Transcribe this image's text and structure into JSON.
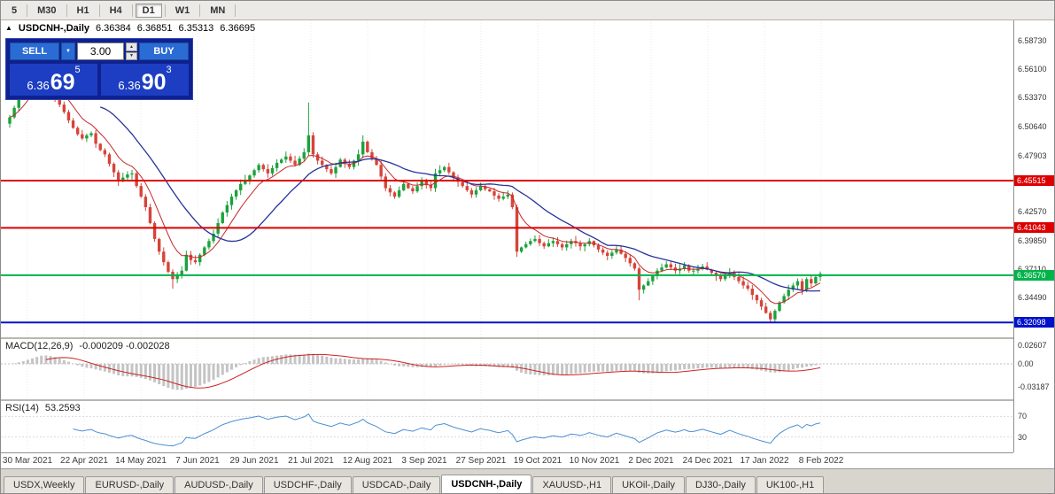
{
  "toolbar": {
    "timeframes": [
      "5",
      "M30",
      "H1",
      "H4",
      "D1",
      "W1",
      "MN"
    ],
    "active": "D1"
  },
  "chart": {
    "title": {
      "symbol": "USDCNH-,Daily",
      "open": "6.36384",
      "high": "6.36851",
      "low": "6.35313",
      "close": "6.36695"
    },
    "trade": {
      "sell": "SELL",
      "buy": "BUY",
      "volume": "3.00",
      "bid": {
        "prefix": "6.36",
        "main": "69",
        "pip": "5"
      },
      "ask": {
        "prefix": "6.36",
        "main": "90",
        "pip": "3"
      }
    },
    "hlines": [
      {
        "price": 6.45515,
        "label": "6.45515",
        "color": "#dd0000"
      },
      {
        "price": 6.41043,
        "label": "6.41043",
        "color": "#dd0000"
      },
      {
        "price": 6.3657,
        "label": "6.36570",
        "color": "#00b44a"
      },
      {
        "price": 6.32098,
        "label": "6.32098",
        "color": "#0012cc"
      }
    ],
    "axis_labels": [
      {
        "text": "6.58730",
        "price": 6.5873
      },
      {
        "text": "6.56100",
        "price": 6.561
      },
      {
        "text": "6.53370",
        "price": 6.5337
      },
      {
        "text": "6.50640",
        "price": 6.5064
      },
      {
        "text": "6.47903",
        "price": 6.479
      },
      {
        "text": "6.42570",
        "price": 6.4257
      },
      {
        "text": "6.39850",
        "price": 6.3985
      },
      {
        "text": "6.37110",
        "price": 6.3711
      },
      {
        "text": "6.34490",
        "price": 6.3449
      }
    ]
  },
  "indicators": {
    "macd": {
      "name": "MACD(12,26,9)",
      "values": "-0.000209 -0.002028",
      "axis": [
        {
          "text": "0.02607",
          "v": 0.02607
        },
        {
          "text": "0.00",
          "v": 0
        },
        {
          "text": "-0.03187",
          "v": -0.03187
        }
      ]
    },
    "rsi": {
      "name": "RSI(14)",
      "value": "53.2593",
      "axis": [
        {
          "text": "70",
          "v": 70
        },
        {
          "text": "30",
          "v": 30
        }
      ],
      "levels": [
        70,
        30
      ]
    }
  },
  "chart_data": {
    "type": "candlestick",
    "symbol": "USDCNH",
    "timeframe": "Daily",
    "x_labels": [
      "30 Mar 2021",
      "22 Apr 2021",
      "14 May 2021",
      "7 Jun 2021",
      "29 Jun 2021",
      "21 Jul 2021",
      "12 Aug 2021",
      "3 Sep 2021",
      "27 Sep 2021",
      "19 Oct 2021",
      "10 Nov 2021",
      "2 Dec 2021",
      "24 Dec 2021",
      "17 Jan 2022",
      "8 Feb 2022"
    ],
    "price_range": {
      "min": 6.312,
      "max": 6.6
    },
    "closes": [
      6.515,
      6.524,
      6.535,
      6.542,
      6.55,
      6.558,
      6.563,
      6.568,
      6.556,
      6.545,
      6.534,
      6.527,
      6.52,
      6.512,
      6.505,
      6.499,
      6.495,
      6.498,
      6.5,
      6.49,
      6.484,
      6.48,
      6.471,
      6.463,
      6.455,
      6.458,
      6.461,
      6.462,
      6.45,
      6.44,
      6.43,
      6.415,
      6.4,
      6.388,
      6.378,
      6.369,
      6.362,
      6.366,
      6.37,
      6.385,
      6.38,
      6.378,
      6.385,
      6.392,
      6.398,
      6.405,
      6.415,
      6.425,
      6.432,
      6.44,
      6.446,
      6.452,
      6.456,
      6.46,
      6.465,
      6.47,
      6.466,
      6.462,
      6.467,
      6.472,
      6.475,
      6.478,
      6.474,
      6.47,
      6.476,
      6.482,
      6.498,
      6.48,
      6.474,
      6.47,
      6.466,
      6.462,
      6.468,
      6.475,
      6.471,
      6.468,
      6.474,
      6.48,
      6.492,
      6.482,
      6.476,
      6.47,
      6.459,
      6.448,
      6.444,
      6.44,
      6.446,
      6.452,
      6.448,
      6.445,
      6.45,
      6.455,
      6.451,
      6.448,
      6.462,
      6.465,
      6.468,
      6.463,
      6.458,
      6.454,
      6.45,
      6.446,
      6.442,
      6.446,
      6.45,
      6.447,
      6.445,
      6.441,
      6.438,
      6.44,
      6.442,
      6.43,
      6.388,
      6.392,
      6.395,
      6.398,
      6.4,
      6.396,
      6.393,
      6.396,
      6.398,
      6.395,
      6.392,
      6.395,
      6.398,
      6.396,
      6.393,
      6.395,
      6.398,
      6.394,
      6.39,
      6.387,
      6.384,
      6.387,
      6.39,
      6.386,
      6.382,
      6.377,
      6.372,
      6.352,
      6.356,
      6.36,
      6.365,
      6.37,
      6.373,
      6.376,
      6.373,
      6.37,
      6.372,
      6.375,
      6.37,
      6.37,
      6.372,
      6.374,
      6.371,
      6.368,
      6.365,
      6.362,
      6.365,
      6.368,
      6.364,
      6.36,
      6.356,
      6.353,
      6.347,
      6.342,
      6.336,
      6.33,
      6.324,
      6.332,
      6.34,
      6.346,
      6.352,
      6.356,
      6.36,
      6.352,
      6.362,
      6.358,
      6.364,
      6.367
    ],
    "spikes": [
      {
        "i": 7,
        "high": 6.578
      },
      {
        "i": 36,
        "low": 6.353
      },
      {
        "i": 66,
        "high": 6.529
      },
      {
        "i": 78,
        "high": 6.498
      },
      {
        "i": 112,
        "low": 6.383
      },
      {
        "i": 139,
        "low": 6.342
      },
      {
        "i": 168,
        "low": 6.321
      }
    ],
    "overlays": [
      {
        "name": "ma-fast",
        "type": "ema",
        "period": 8,
        "color": "#c62828"
      },
      {
        "name": "ma-slow",
        "type": "sma",
        "period": 21,
        "color": "#26339b"
      }
    ],
    "hlines": [
      6.45515,
      6.41043,
      6.3657,
      6.32098
    ]
  },
  "tabs": {
    "items": [
      "USDX,Weekly",
      "EURUSD-,Daily",
      "AUDUSD-,Daily",
      "USDCHF-,Daily",
      "USDCAD-,Daily",
      "USDCNH-,Daily",
      "XAUUSD-,H1",
      "UKOil-,Daily",
      "DJ30-,Daily",
      "UK100-,H1"
    ],
    "active": "USDCNH-,Daily"
  },
  "icons": {
    "collapse": "▲",
    "dropdown": "▼",
    "spin_up": "▲",
    "spin_down": "▼"
  },
  "colors": {
    "up_candle": "#1ca23c",
    "down_candle": "#d6443a",
    "macd_hist": "#c4c4c4",
    "macd_signal": "#cc2222",
    "rsi_line": "#4a90d2"
  }
}
